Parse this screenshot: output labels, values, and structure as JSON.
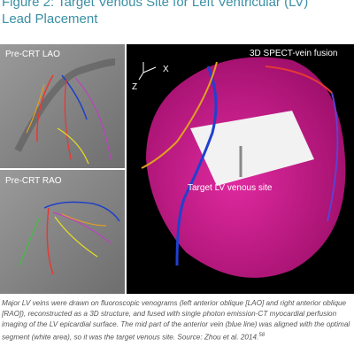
{
  "figure": {
    "title_line1": "Figure 2: Target Venous Site for Left Ventricular (LV)",
    "title_line2": "Lead Placement",
    "panels": {
      "lao_label": "Pre-CRT LAO",
      "rao_label": "Pre-CRT RAO",
      "fusion_label": "3D SPECT-vein fusion",
      "target_label": "Target LV venous site",
      "axis_z": "Z",
      "axis_x": "X"
    },
    "caption": "Major LV veins were drawn on fluoroscopic venograms (left anterior oblique [LAO] and right anterior oblique [RAO]), reconstructed as a 3D structure, and fused with single photon emission-CT myocardial perfusion imaging of the LV epicardial surface. The mid part of the anterior vein (blue line) was aligned with the optimal segment (white area), so it was the target venous site.",
    "source": "Source: Zhou et al. 2014.",
    "source_ref": "58"
  }
}
